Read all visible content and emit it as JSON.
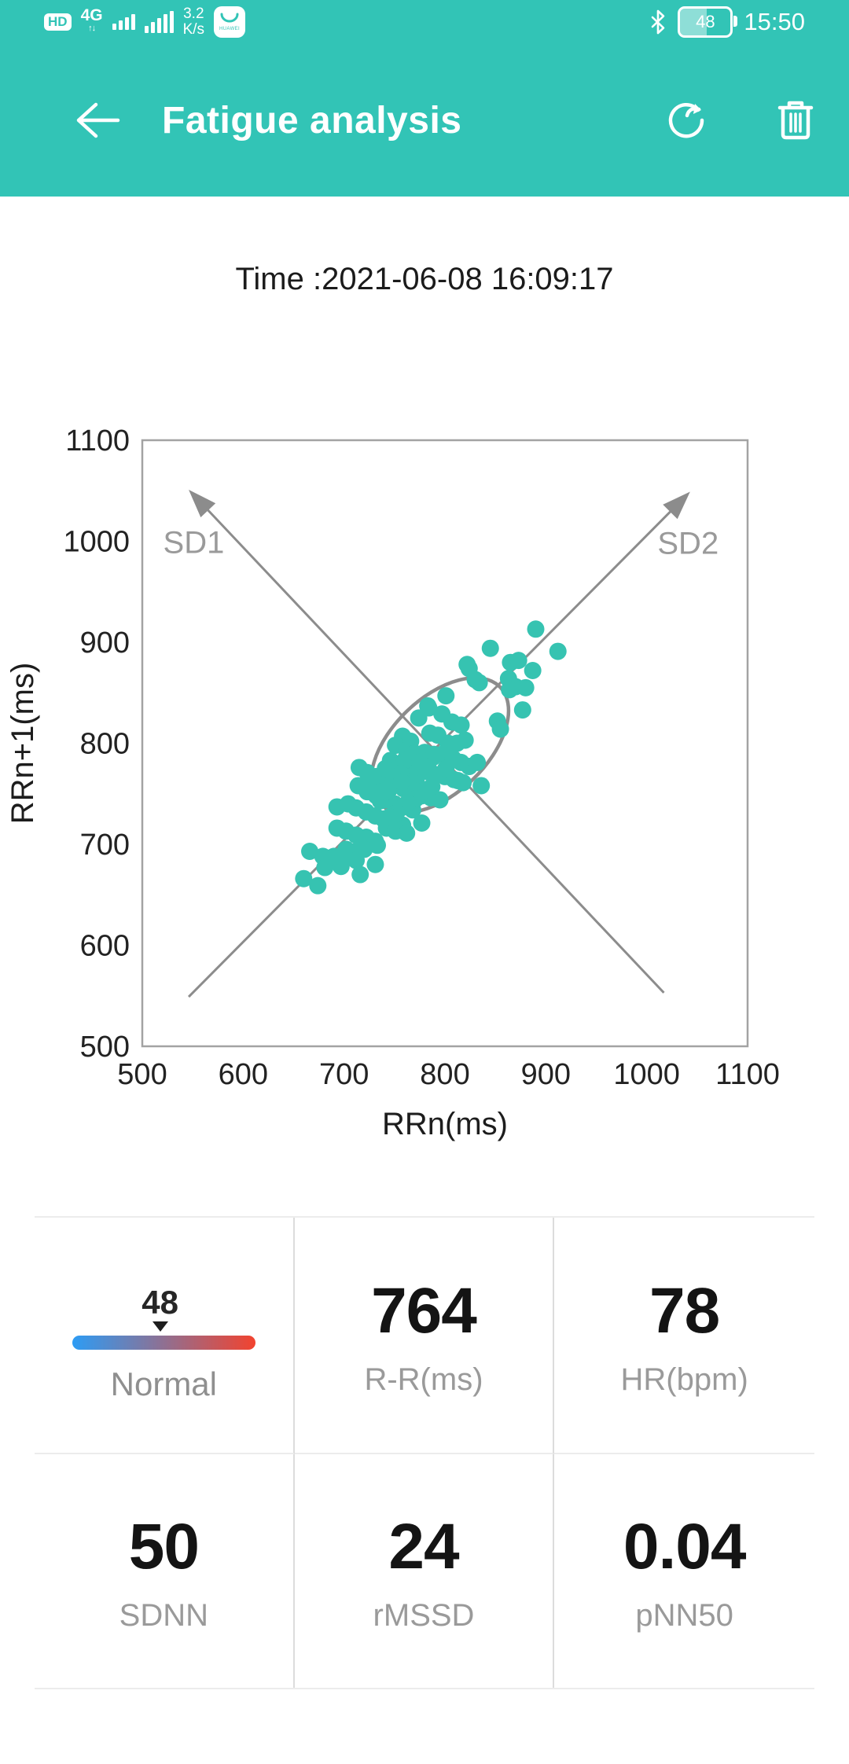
{
  "status_bar": {
    "hd": "HD",
    "network": "4G",
    "net_arrows": "↑↓",
    "speed_value": "3.2",
    "speed_unit": "K/s",
    "huawei_label": "HUAWEI",
    "battery_level": "48",
    "time": "15:50"
  },
  "header": {
    "title": "Fatigue analysis"
  },
  "timestamp_line": "Time :2021-06-08 16:09:17",
  "chart_data": {
    "type": "scatter",
    "title": "",
    "xlabel": "RRn(ms)",
    "ylabel": "RRn+1(ms)",
    "xlim": [
      500,
      1100
    ],
    "ylim": [
      500,
      1100
    ],
    "xticks": [
      "500",
      "600",
      "700",
      "800",
      "900",
      "1000",
      "1100"
    ],
    "yticks": [
      "500",
      "600",
      "700",
      "800",
      "900",
      "1000",
      "1100"
    ],
    "grid": false,
    "legend": "none",
    "point_color": "#36c3b1",
    "line_color": "#8c8c8c",
    "border_color": "#a3a3a3",
    "sd_label_color": "#9a9a9a",
    "sd2_arrow": {
      "from": [
        546,
        549
      ],
      "to": [
        1043,
        1049
      ],
      "label": "SD2",
      "label_at": [
        1041,
        998
      ]
    },
    "sd1_arrow": {
      "from": [
        1017,
        553
      ],
      "to": [
        546,
        1051
      ],
      "label": "SD1",
      "label_at": [
        551,
        999
      ]
    },
    "ellipse": {
      "center": [
        795,
        798
      ],
      "rx_ms": 83,
      "ry_ms": 47,
      "rotation_deg": -44
    },
    "points": [
      [
        845,
        894
      ],
      [
        822,
        878
      ],
      [
        830,
        863
      ],
      [
        865,
        880
      ],
      [
        870,
        856
      ],
      [
        912,
        891
      ],
      [
        890,
        913
      ],
      [
        873,
        882
      ],
      [
        887,
        872
      ],
      [
        824,
        874
      ],
      [
        834,
        860
      ],
      [
        863,
        864
      ],
      [
        864,
        853
      ],
      [
        880,
        855
      ],
      [
        801,
        847
      ],
      [
        783,
        837
      ],
      [
        784,
        835
      ],
      [
        797,
        829
      ],
      [
        807,
        821
      ],
      [
        816,
        818
      ],
      [
        774,
        825
      ],
      [
        785,
        810
      ],
      [
        793,
        808
      ],
      [
        803,
        800
      ],
      [
        812,
        800
      ],
      [
        820,
        803
      ],
      [
        877,
        833
      ],
      [
        852,
        822
      ],
      [
        855,
        814
      ],
      [
        758,
        807
      ],
      [
        766,
        802
      ],
      [
        751,
        798
      ],
      [
        762,
        793
      ],
      [
        770,
        790
      ],
      [
        780,
        791
      ],
      [
        789,
        789
      ],
      [
        797,
        789
      ],
      [
        808,
        785
      ],
      [
        816,
        781
      ],
      [
        824,
        777
      ],
      [
        832,
        781
      ],
      [
        813,
        763
      ],
      [
        746,
        783
      ],
      [
        755,
        779
      ],
      [
        764,
        776
      ],
      [
        773,
        773
      ],
      [
        782,
        772
      ],
      [
        791,
        769
      ],
      [
        800,
        767
      ],
      [
        809,
        764
      ],
      [
        818,
        761
      ],
      [
        801,
        775
      ],
      [
        788,
        786
      ],
      [
        715,
        776
      ],
      [
        723,
        771
      ],
      [
        732,
        767
      ],
      [
        741,
        763
      ],
      [
        750,
        759
      ],
      [
        759,
        755
      ],
      [
        768,
        751
      ],
      [
        777,
        748
      ],
      [
        786,
        746
      ],
      [
        795,
        744
      ],
      [
        714,
        758
      ],
      [
        723,
        752
      ],
      [
        732,
        748
      ],
      [
        741,
        744
      ],
      [
        750,
        740
      ],
      [
        759,
        737
      ],
      [
        768,
        734
      ],
      [
        693,
        737
      ],
      [
        704,
        740
      ],
      [
        712,
        736
      ],
      [
        722,
        732
      ],
      [
        731,
        728
      ],
      [
        739,
        725
      ],
      [
        749,
        721
      ],
      [
        758,
        719
      ],
      [
        777,
        721
      ],
      [
        693,
        716
      ],
      [
        702,
        713
      ],
      [
        712,
        709
      ],
      [
        722,
        707
      ],
      [
        731,
        703
      ],
      [
        742,
        716
      ],
      [
        751,
        713
      ],
      [
        762,
        711
      ],
      [
        666,
        693
      ],
      [
        679,
        688
      ],
      [
        702,
        695
      ],
      [
        712,
        693
      ],
      [
        733,
        699
      ],
      [
        660,
        666
      ],
      [
        674,
        659
      ],
      [
        697,
        678
      ],
      [
        681,
        677
      ],
      [
        690,
        688
      ],
      [
        700,
        685
      ],
      [
        712,
        684
      ],
      [
        720,
        695
      ],
      [
        716,
        670
      ],
      [
        731,
        680
      ],
      [
        836,
        758
      ],
      [
        760,
        783
      ],
      [
        768,
        789
      ],
      [
        775,
        781
      ],
      [
        783,
        777
      ],
      [
        772,
        760
      ],
      [
        764,
        765
      ],
      [
        756,
        770
      ],
      [
        748,
        767
      ],
      [
        787,
        757
      ],
      [
        779,
        753
      ],
      [
        771,
        745
      ],
      [
        763,
        741
      ],
      [
        744,
        753
      ],
      [
        736,
        743
      ],
      [
        752,
        731
      ],
      [
        745,
        727
      ],
      [
        757,
        762
      ],
      [
        741,
        775
      ],
      [
        728,
        758
      ],
      [
        736,
        752
      ]
    ]
  },
  "stats": {
    "cells": [
      {
        "type": "gauge",
        "value": "48",
        "label": "Normal",
        "marker_pos": 0.48,
        "gradient": [
          "#2d9cf4",
          "#f2432f"
        ]
      },
      {
        "type": "plain",
        "value": "764",
        "label": "R-R(ms)"
      },
      {
        "type": "plain",
        "value": "78",
        "label": "HR(bpm)"
      },
      {
        "type": "plain",
        "value": "50",
        "label": "SDNN"
      },
      {
        "type": "plain",
        "value": "24",
        "label": "rMSSD"
      },
      {
        "type": "plain",
        "value": "0.04",
        "label": "pNN50"
      }
    ]
  }
}
